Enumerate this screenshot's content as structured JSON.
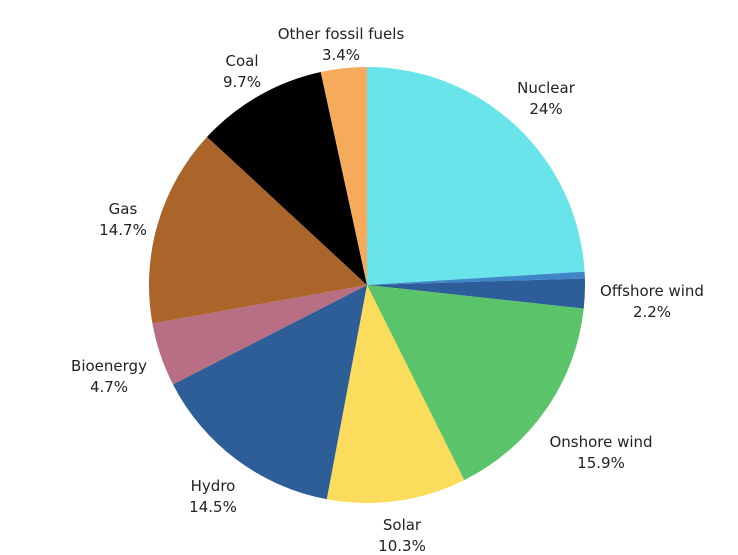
{
  "chart_data": {
    "type": "pie",
    "title": "",
    "legend": "none",
    "start_angle_deg": 90,
    "direction": "clockwise",
    "slices": [
      {
        "name": "Nuclear",
        "value": 24,
        "value_label": "24%",
        "color": "#68E4EA"
      },
      {
        "name": "",
        "value": 0.5,
        "value_label": "",
        "color": "#3E86C8"
      },
      {
        "name": "Offshore wind",
        "value": 2.2,
        "value_label": "2.2%",
        "color": "#2E5E9A"
      },
      {
        "name": "Onshore wind",
        "value": 15.9,
        "value_label": "15.9%",
        "color": "#5BC46A"
      },
      {
        "name": "Solar",
        "value": 10.3,
        "value_label": "10.3%",
        "color": "#FCDC5C"
      },
      {
        "name": "Hydro",
        "value": 14.5,
        "value_label": "14.5%",
        "color": "#2E5E98"
      },
      {
        "name": "Bioenergy",
        "value": 4.7,
        "value_label": "4.7%",
        "color": "#B86F84"
      },
      {
        "name": "Gas",
        "value": 14.7,
        "value_label": "14.7%",
        "color": "#AB6429"
      },
      {
        "name": "Coal",
        "value": 9.7,
        "value_label": "9.7%",
        "color": "#000000"
      },
      {
        "name": "Other fossil fuels",
        "value": 3.4,
        "value_label": "3.4%",
        "color": "#F6AA5C"
      }
    ]
  }
}
